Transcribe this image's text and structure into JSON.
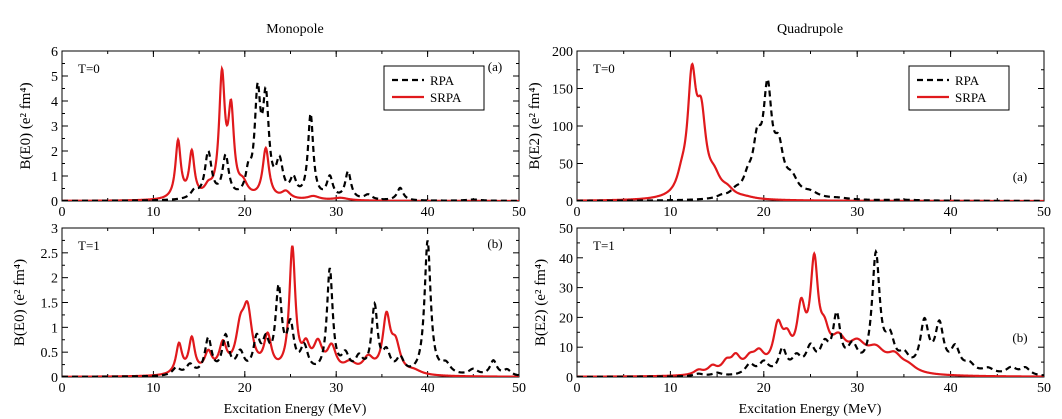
{
  "figure": {
    "xlabel": "Excitation Energy (MeV)",
    "colors": {
      "rpa": "#000000",
      "srpa": "#e0191c"
    }
  },
  "chart_data": [
    {
      "id": "mono-a",
      "type": "line",
      "title": "Monopole",
      "ylabel": "B(E0) (e² fm⁴)",
      "xlabel": "",
      "xlim": [
        0,
        50
      ],
      "ylim": [
        0,
        6
      ],
      "xticks": [
        0,
        10,
        20,
        30,
        40,
        50
      ],
      "yticks": [
        0,
        1,
        2,
        3,
        4,
        5,
        6
      ],
      "ytick_labels": [
        "0",
        "1",
        "2",
        "3",
        "4",
        "5",
        "6"
      ],
      "panel_label": "(a)",
      "annotation": "T=0",
      "legend": {
        "position": "top-right",
        "entries": [
          "RPA",
          "SRPA"
        ]
      },
      "series": [
        {
          "name": "RPA",
          "style": "dashed",
          "peaks": [
            [
              14.5,
              0.3,
              0.5
            ],
            [
              16.0,
              1.85,
              0.45
            ],
            [
              17.9,
              1.65,
              0.42
            ],
            [
              20.4,
              0.85,
              0.38
            ],
            [
              21.4,
              3.9,
              0.38
            ],
            [
              22.3,
              3.75,
              0.4
            ],
            [
              23.8,
              1.35,
              0.45
            ],
            [
              25.3,
              0.7,
              0.4
            ],
            [
              27.2,
              3.35,
              0.35
            ],
            [
              29.3,
              0.85,
              0.4
            ],
            [
              31.3,
              1.1,
              0.38
            ],
            [
              33.5,
              0.2,
              0.5
            ],
            [
              37.0,
              0.5,
              0.4
            ],
            [
              45.0,
              0.05,
              1.0
            ]
          ]
        },
        {
          "name": "SRPA",
          "style": "solid",
          "peaks": [
            [
              12.7,
              2.3,
              0.35
            ],
            [
              14.2,
              1.8,
              0.35
            ],
            [
              16.0,
              0.35,
              0.5
            ],
            [
              17.5,
              4.75,
              0.38
            ],
            [
              18.5,
              3.3,
              0.38
            ],
            [
              19.8,
              0.5,
              0.6
            ],
            [
              22.3,
              2.0,
              0.42
            ],
            [
              24.5,
              0.3,
              0.6
            ],
            [
              27.5,
              0.15,
              0.8
            ],
            [
              30.5,
              0.1,
              1.0
            ]
          ]
        }
      ]
    },
    {
      "id": "quad-a",
      "type": "line",
      "title": "Quadrupole",
      "ylabel": "B(E2) (e² fm⁴)",
      "xlabel": "",
      "xlim": [
        0,
        50
      ],
      "ylim": [
        0,
        200
      ],
      "xticks": [
        0,
        10,
        20,
        30,
        40,
        50
      ],
      "yticks": [
        0,
        50,
        100,
        150,
        200
      ],
      "ytick_labels": [
        "0",
        "50",
        "100",
        "150",
        "200"
      ],
      "panel_label": "(a)",
      "annotation": "T=0",
      "legend": {
        "position": "top-right",
        "entries": [
          "RPA",
          "SRPA"
        ]
      },
      "series": [
        {
          "name": "RPA",
          "style": "dashed",
          "peaks": [
            [
              15.5,
              3,
              0.6
            ],
            [
              17.0,
              8,
              0.7
            ],
            [
              18.3,
              20,
              0.6
            ],
            [
              19.3,
              62,
              0.55
            ],
            [
              20.4,
              135,
              0.55
            ],
            [
              21.6,
              55,
              0.6
            ],
            [
              23.0,
              22,
              0.8
            ],
            [
              25.0,
              7,
              1.0
            ],
            [
              28.0,
              2,
              1.5
            ],
            [
              35.0,
              1,
              2.0
            ]
          ]
        },
        {
          "name": "SRPA",
          "style": "solid",
          "peaks": [
            [
              11.2,
              18,
              0.6
            ],
            [
              12.3,
              150,
              0.55
            ],
            [
              13.3,
              95,
              0.6
            ],
            [
              14.7,
              22,
              0.8
            ],
            [
              16.1,
              9,
              0.8
            ],
            [
              18.0,
              2,
              1.2
            ]
          ]
        }
      ]
    },
    {
      "id": "mono-b",
      "type": "line",
      "title": "",
      "ylabel": "B(E0) (e² fm⁴)",
      "xlabel": "Excitation Energy (MeV)",
      "xlim": [
        0,
        50
      ],
      "ylim": [
        0,
        3
      ],
      "xticks": [
        0,
        10,
        20,
        30,
        40,
        50
      ],
      "yticks": [
        0,
        0.5,
        1,
        1.5,
        2,
        2.5,
        3
      ],
      "ytick_labels": [
        "0",
        "0.5",
        "1",
        "1.5",
        "2",
        "2.5",
        "3"
      ],
      "panel_label": "(b)",
      "annotation": "T=1",
      "series": [
        {
          "name": "RPA",
          "style": "dashed",
          "peaks": [
            [
              12.5,
              0.15,
              0.5
            ],
            [
              14.0,
              0.2,
              0.5
            ],
            [
              16.0,
              0.72,
              0.45
            ],
            [
              17.9,
              0.75,
              0.45
            ],
            [
              19.5,
              0.4,
              0.5
            ],
            [
              21.3,
              0.65,
              0.45
            ],
            [
              22.3,
              0.55,
              0.45
            ],
            [
              23.7,
              1.65,
              0.42
            ],
            [
              25.0,
              0.9,
              0.45
            ],
            [
              26.5,
              0.5,
              0.5
            ],
            [
              29.3,
              2.1,
              0.38
            ],
            [
              31.0,
              0.35,
              0.5
            ],
            [
              32.5,
              0.3,
              0.5
            ],
            [
              34.2,
              1.35,
              0.4
            ],
            [
              35.5,
              0.4,
              0.5
            ],
            [
              37.0,
              0.3,
              0.5
            ],
            [
              40.0,
              2.7,
              0.4
            ],
            [
              42.0,
              0.2,
              0.6
            ],
            [
              45.0,
              0.12,
              0.6
            ],
            [
              47.2,
              0.3,
              0.45
            ],
            [
              48.7,
              0.12,
              0.5
            ]
          ]
        },
        {
          "name": "SRPA",
          "style": "solid",
          "peaks": [
            [
              12.8,
              0.6,
              0.4
            ],
            [
              14.2,
              0.7,
              0.4
            ],
            [
              16.0,
              0.4,
              0.5
            ],
            [
              17.6,
              0.55,
              0.5
            ],
            [
              19.5,
              0.75,
              0.6
            ],
            [
              20.3,
              1.15,
              0.6
            ],
            [
              22.5,
              0.7,
              0.5
            ],
            [
              25.2,
              2.5,
              0.4
            ],
            [
              26.7,
              0.45,
              0.5
            ],
            [
              28.0,
              0.55,
              0.6
            ],
            [
              29.5,
              0.5,
              0.6
            ],
            [
              31.5,
              0.2,
              0.8
            ],
            [
              33.5,
              0.3,
              0.7
            ],
            [
              35.5,
              1.1,
              0.5
            ],
            [
              36.5,
              0.55,
              0.6
            ],
            [
              38.5,
              0.08,
              1.0
            ]
          ]
        }
      ]
    },
    {
      "id": "quad-b",
      "type": "line",
      "title": "",
      "ylabel": "B(E2) (e² fm⁴)",
      "xlabel": "Excitation Energy (MeV)",
      "xlim": [
        0,
        50
      ],
      "ylim": [
        0,
        50
      ],
      "xticks": [
        0,
        10,
        20,
        30,
        40,
        50
      ],
      "yticks": [
        0,
        10,
        20,
        30,
        40,
        50
      ],
      "ytick_labels": [
        "0",
        "10",
        "20",
        "30",
        "40",
        "50"
      ],
      "panel_label": "(b)",
      "annotation": "T=1",
      "series": [
        {
          "name": "RPA",
          "style": "dashed",
          "peaks": [
            [
              13.0,
              0.8,
              0.6
            ],
            [
              15.0,
              1.0,
              0.6
            ],
            [
              18.5,
              3.5,
              0.6
            ],
            [
              20.0,
              4.0,
              0.6
            ],
            [
              22.0,
              8.0,
              0.5
            ],
            [
              23.5,
              5.0,
              0.6
            ],
            [
              25.0,
              8.0,
              0.6
            ],
            [
              26.5,
              8.0,
              0.6
            ],
            [
              27.8,
              18.0,
              0.5
            ],
            [
              29.5,
              8.0,
              0.7
            ],
            [
              32.0,
              39.0,
              0.5
            ],
            [
              33.5,
              10.0,
              0.6
            ],
            [
              35.0,
              5.0,
              0.7
            ],
            [
              37.2,
              16.5,
              0.55
            ],
            [
              38.8,
              15.5,
              0.55
            ],
            [
              40.5,
              8.0,
              0.6
            ],
            [
              42.0,
              3.0,
              0.7
            ],
            [
              44.0,
              2.0,
              0.8
            ],
            [
              46.5,
              2.5,
              0.7
            ],
            [
              48.0,
              2.5,
              0.6
            ]
          ]
        },
        {
          "name": "SRPA",
          "style": "solid",
          "peaks": [
            [
              13.0,
              1.5,
              0.6
            ],
            [
              14.5,
              2.5,
              0.6
            ],
            [
              16.0,
              3.5,
              0.6
            ],
            [
              17.0,
              5.0,
              0.6
            ],
            [
              18.5,
              4.0,
              0.7
            ],
            [
              19.5,
              5.5,
              0.7
            ],
            [
              21.5,
              14.0,
              0.6
            ],
            [
              22.5,
              8.0,
              0.6
            ],
            [
              24.0,
              19.0,
              0.55
            ],
            [
              25.4,
              34.0,
              0.5
            ],
            [
              26.5,
              9.0,
              0.6
            ],
            [
              28.0,
              9.0,
              1.0
            ],
            [
              30.0,
              8.0,
              1.2
            ],
            [
              32.0,
              6.5,
              1.2
            ],
            [
              34.0,
              5.0,
              1.0
            ],
            [
              35.5,
              2.0,
              1.0
            ]
          ]
        }
      ]
    }
  ]
}
